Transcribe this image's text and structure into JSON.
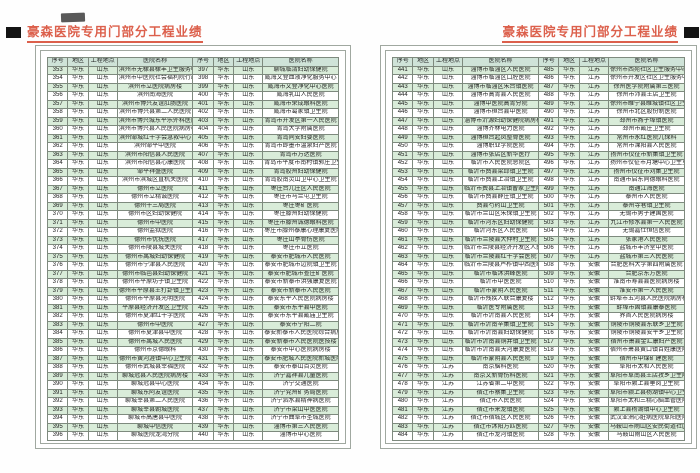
{
  "title": "豪森医院专用门部分工程业绩",
  "colors": {
    "accent": "#dc604c",
    "header_bg": "#cfe3d8",
    "stripe": "#d9ecd9"
  },
  "table": {
    "headers": [
      "序号",
      "地区",
      "工程地点",
      "医院名称"
    ]
  },
  "pages": [
    {
      "name": "page-1",
      "left_rows": [
        [
          "353",
          "华东",
          "山东",
          "滨州市无棣县棣丰卫生服务中心"
        ],
        [
          "354",
          "华东",
          "山东",
          "滨州市中医院社会福利院行政楼"
        ],
        [
          "355",
          "华东",
          "山东",
          "滨州市立医院病房楼"
        ],
        [
          "356",
          "华东",
          "山东",
          "滨州南海医院"
        ],
        [
          "357",
          "华东",
          "山东",
          "滨州市博兴友谊肛肠医院"
        ],
        [
          "358",
          "华东",
          "山东",
          "滨州市博兴县第二人民医院"
        ],
        [
          "359",
          "华东",
          "山东",
          "滨州市博兴城东平乐外科医院"
        ],
        [
          "360",
          "华东",
          "山东",
          "滨州市博兴县人民医院病房楼"
        ],
        [
          "361",
          "华东",
          "山东",
          "滨州邹城红十字会急救中心"
        ],
        [
          "362",
          "华东",
          "山东",
          "滨州邹平中医院"
        ],
        [
          "363",
          "华东",
          "山东",
          "滨州市阳信县人民医院"
        ],
        [
          "364",
          "华东",
          "山东",
          "滨州市阳信县心康医院"
        ],
        [
          "365",
          "华东",
          "山东",
          "邹平祥盛医院"
        ],
        [
          "366",
          "华东",
          "山东",
          "滨州市滨城区直机关医院"
        ],
        [
          "367",
          "华东",
          "山东",
          "德州市立医院"
        ],
        [
          "368",
          "华东",
          "山东",
          "德州市立精诚医院"
        ],
        [
          "369",
          "华东",
          "山东",
          "德州十三局医院"
        ],
        [
          "370",
          "华东",
          "山东",
          "德州市区妇幼保健院"
        ],
        [
          "371",
          "华东",
          "山东",
          "德州市中医院"
        ],
        [
          "372",
          "华东",
          "山东",
          "德州监狱医院"
        ],
        [
          "373",
          "华东",
          "山东",
          "德州市优抚医院"
        ],
        [
          "374",
          "华东",
          "山东",
          "德州市陵县城关医院"
        ],
        [
          "375",
          "华东",
          "山东",
          "德州市禹城妇幼保健院"
        ],
        [
          "376",
          "华东",
          "山东",
          "德州市宁津县人民医院"
        ],
        [
          "377",
          "华东",
          "山东",
          "德州市临邑县妇幼保健院"
        ],
        [
          "378",
          "华东",
          "山东",
          "德州市平原坊子镇卫生院"
        ],
        [
          "379",
          "华东",
          "山东",
          "德州市平原县王打卦镇卫生院"
        ],
        [
          "380",
          "华东",
          "山东",
          "德州市平原县光明医院"
        ],
        [
          "381",
          "华东",
          "山东",
          "平原县经济开发区卫生院"
        ],
        [
          "382",
          "华东",
          "山东",
          "德州市夏津红十字医院"
        ],
        [
          "383",
          "华东",
          "山东",
          "德州市中医院"
        ],
        [
          "384",
          "华东",
          "山东",
          "德州市夏津县中医院"
        ],
        [
          "385",
          "华东",
          "山东",
          "德州市禹城人民医院"
        ],
        [
          "386",
          "华东",
          "山东",
          "德州市京德眼科"
        ],
        [
          "387",
          "华东",
          "山东",
          "德州市黄河涯镇中心卫生院"
        ],
        [
          "388",
          "华东",
          "山东",
          "德州市武城县幸福医院"
        ],
        [
          "389",
          "华东",
          "山东",
          "聊城冠县人民医院病房楼"
        ],
        [
          "390",
          "华东",
          "山东",
          "聊城冠县中心医院"
        ],
        [
          "391",
          "华东",
          "山东",
          "聊城东阿友谊医院"
        ],
        [
          "392",
          "华东",
          "山东",
          "聊城莘县第二人民医院"
        ],
        [
          "393",
          "华东",
          "山东",
          "聊城莘县朝城医院"
        ],
        [
          "394",
          "华东",
          "山东",
          "聊城市高唐县中医院"
        ],
        [
          "395",
          "华东",
          "山东",
          "聊城中信医院"
        ],
        [
          "396",
          "华东",
          "山东",
          "聊城医院龙湾分院"
        ]
      ],
      "right_rows": [
        [
          "397",
          "华东",
          "山东",
          "聊城临清妇幼保健院"
        ],
        [
          "398",
          "华东",
          "山东",
          "威海文登血液净化服务中心"
        ],
        [
          "399",
          "华东",
          "山东",
          "威海市文登净化中心医院"
        ],
        [
          "400",
          "华东",
          "山东",
          "威海乳山人民医院"
        ],
        [
          "401",
          "华东",
          "山东",
          "威海市荣成眼科医院"
        ],
        [
          "402",
          "华东",
          "山东",
          "威海市葛家镇卫生院"
        ],
        [
          "403",
          "华东",
          "山东",
          "青岛市开发区第一人民医院"
        ],
        [
          "404",
          "华东",
          "山东",
          "青岛大学附属医院"
        ],
        [
          "405",
          "华东",
          "山东",
          "青岛同安妇婴医院"
        ],
        [
          "406",
          "华东",
          "山东",
          "青岛市即墨市温泉妇产医院"
        ],
        [
          "407",
          "华东",
          "山东",
          "青岛市万达医院"
        ],
        [
          "408",
          "华东",
          "山东",
          "青岛市平度市南村镇郭庄卫生院"
        ],
        [
          "409",
          "华东",
          "山东",
          "青岛胶州妇幼保健院"
        ],
        [
          "410",
          "华东",
          "山东",
          "青岛胶南灵山卫中心卫生院"
        ],
        [
          "411",
          "华东",
          "山东",
          "枣庄台儿庄区人民医院"
        ],
        [
          "412",
          "华东",
          "山东",
          "枣庄市马兰屯卫生院"
        ],
        [
          "413",
          "华东",
          "山东",
          "枣庄枣矿医院"
        ],
        [
          "414",
          "华东",
          "山东",
          "枣庄滕州妇幼保健院"
        ],
        [
          "415",
          "华东",
          "山东",
          "枣庄市滕州诚德眼科医院"
        ],
        [
          "416",
          "华东",
          "山东",
          "枣庄市滕州泰康心理康复医院"
        ],
        [
          "417",
          "华东",
          "山东",
          "枣庄山亭骨伤医院"
        ],
        [
          "418",
          "华东",
          "山东",
          "枣庄市立医院"
        ],
        [
          "419",
          "华东",
          "山东",
          "泰安市肥城市人民医院"
        ],
        [
          "420",
          "华东",
          "山东",
          "泰安市肥城市边院镇卫生院"
        ],
        [
          "421",
          "华东",
          "山东",
          "泰安市肥城市查庄矿医院"
        ],
        [
          "422",
          "华东",
          "山东",
          "泰安市新泰市洪强康复医院"
        ],
        [
          "423",
          "华东",
          "山东",
          "泰安市新泰市人民医院"
        ],
        [
          "424",
          "华东",
          "山东",
          "泰安东平人民医院病房楼"
        ],
        [
          "425",
          "华东",
          "山东",
          "泰安市东平县中医院"
        ],
        [
          "426",
          "华东",
          "山东",
          "泰安市东平县戴庙卫生院"
        ],
        [
          "427",
          "华东",
          "山东",
          "泰安市宁阳二院"
        ],
        [
          "428",
          "华东",
          "山东",
          "泰安新泰市人民医院综合病房楼"
        ],
        [
          "429",
          "华东",
          "山东",
          "泰安新泰市人民医院医技楼"
        ],
        [
          "430",
          "华东",
          "山东",
          "泰安市中心医院病房楼"
        ],
        [
          "431",
          "华东",
          "山东",
          "泰安市肥城人民医院新城医院"
        ],
        [
          "432",
          "华东",
          "山东",
          "泰安市泰山百灵医院"
        ],
        [
          "433",
          "华东",
          "山东",
          "济宁嘉祥县儿童医院"
        ],
        [
          "434",
          "华东",
          "山东",
          "济宁交通医院"
        ],
        [
          "435",
          "华东",
          "山东",
          "济宁兖州矿务局医院"
        ],
        [
          "436",
          "华东",
          "山东",
          "济宁泗水县精神病医院"
        ],
        [
          "437",
          "华东",
          "山东",
          "济宁市梁山中医医院"
        ],
        [
          "438",
          "华东",
          "山东",
          "济宁市曲阜市圣城医院"
        ],
        [
          "439",
          "华东",
          "山东",
          "淄博市第三人民医院"
        ],
        [
          "440",
          "华东",
          "山东",
          "淄博市中心医院"
        ]
      ]
    },
    {
      "name": "page-2",
      "left_rows": [
        [
          "441",
          "华东",
          "山东",
          "淄博市临淄区人民医院"
        ],
        [
          "442",
          "华东",
          "山东",
          "淄博市临淄区口腔医院"
        ],
        [
          "443",
          "华东",
          "山东",
          "淄博市临淄区朱台镇医院"
        ],
        [
          "444",
          "华东",
          "山东",
          "淄博市高青县人民医院"
        ],
        [
          "445",
          "华东",
          "山东",
          "淄博中医院高青分院"
        ],
        [
          "446",
          "华东",
          "山东",
          "淄博市桓台县中医院"
        ],
        [
          "447",
          "华东",
          "山东",
          "淄博市沂源妇幼保健院病房楼"
        ],
        [
          "448",
          "华东",
          "山东",
          "淄博齐林电力医院"
        ],
        [
          "449",
          "华东",
          "山东",
          "淄博桓台起凤整骨医院"
        ],
        [
          "450",
          "华东",
          "山东",
          "淄博职业学院医院"
        ],
        [
          "451",
          "华东",
          "山东",
          "淄博市张店区新华医疗"
        ],
        [
          "452",
          "华东",
          "山东",
          "临沂市人民医院总院区"
        ],
        [
          "453",
          "华东",
          "山东",
          "临沂市费县梁邱镇卫生院"
        ],
        [
          "454",
          "华东",
          "山东",
          "临沂市费县上冶镇卫生院"
        ],
        [
          "455",
          "华东",
          "山东",
          "临沂市费县上冶镇曹家卫生院"
        ],
        [
          "456",
          "华东",
          "山东",
          "临沂市费县薛庄镇卫生院"
        ],
        [
          "457",
          "华东",
          "山东",
          "费县芍药山卫生院"
        ],
        [
          "458",
          "华东",
          "山东",
          "临沂市兰山区朱保镇卫生院"
        ],
        [
          "459",
          "华东",
          "山东",
          "临沂市河东区妇幼保健院"
        ],
        [
          "460",
          "华东",
          "山东",
          "临沂河东区人民医院"
        ],
        [
          "461",
          "华东",
          "山东",
          "临沂市兰陵县大仲村卫生院"
        ],
        [
          "462",
          "华东",
          "山东",
          "临沂市兰陵县经济开发区人民医院"
        ],
        [
          "463",
          "华东",
          "山东",
          "临沂市兰陵县红十字会医院"
        ],
        [
          "464",
          "华东",
          "山东",
          "临沂市兰陵县芦柞镇中西医结合医院"
        ],
        [
          "465",
          "华东",
          "山东",
          "临沂市临沭洪峰医院"
        ],
        [
          "466",
          "华东",
          "山东",
          "临沂市中医医院"
        ],
        [
          "467",
          "华东",
          "山东",
          "临沂市蒙阴人民医院"
        ],
        [
          "468",
          "华东",
          "山东",
          "临沂市残疾人联合康复楼"
        ],
        [
          "469",
          "华东",
          "山东",
          "临沂医专附属医院"
        ],
        [
          "470",
          "华东",
          "山东",
          "临沂市沂南县人民医院"
        ],
        [
          "471",
          "华东",
          "山东",
          "临沂市沂南辛集镇卫生院"
        ],
        [
          "472",
          "华东",
          "山东",
          "临沂市沂南县妇幼保健院"
        ],
        [
          "473",
          "华东",
          "山东",
          "临沂市沂南县铜井镇卫生院"
        ],
        [
          "474",
          "华东",
          "山东",
          "临沂市沂南县天河康复医院"
        ],
        [
          "475",
          "华东",
          "山东",
          "临沂市蒙阴县人民医院"
        ],
        [
          "476",
          "华东",
          "江苏",
          "南京脑科医院"
        ],
        [
          "477",
          "华东",
          "江苏",
          "南京文新骨伤科医院"
        ],
        [
          "478",
          "华东",
          "江苏",
          "江苏省第二中医院"
        ],
        [
          "479",
          "华东",
          "江苏",
          "宿迁市蔡集卫生院"
        ],
        [
          "480",
          "华东",
          "江苏",
          "宿迁市人民医院"
        ],
        [
          "481",
          "华东",
          "江苏",
          "宿迁市来龙镇医院"
        ],
        [
          "482",
          "华东",
          "江苏",
          "宿迁市宿城区人民医院"
        ],
        [
          "483",
          "华东",
          "江苏",
          "宿迁市沭阳万匹医院"
        ],
        [
          "484",
          "华东",
          "江苏",
          "宿迁市龙河镇医院"
        ]
      ],
      "right_rows": [
        [
          "485",
          "华东",
          "江苏",
          "徐州市西苑社区卫生服务中心"
        ],
        [
          "486",
          "华东",
          "江苏",
          "徐州市开发区社区卫生服务中心"
        ],
        [
          "487",
          "华东",
          "江苏",
          "徐州医学院附属第三医院"
        ],
        [
          "488",
          "华东",
          "江苏",
          "徐州市沛县王店卫生院"
        ],
        [
          "489",
          "华东",
          "江苏",
          "徐州市睢宁县睢城镇社区卫生服务中心"
        ],
        [
          "490",
          "华东",
          "江苏",
          "徐州市北区股份制医院"
        ],
        [
          "491",
          "华东",
          "江苏",
          "邳州市燕子埠镇医院"
        ],
        [
          "492",
          "华东",
          "江苏",
          "邳州市戴庄卫生院"
        ],
        [
          "493",
          "华东",
          "江苏",
          "常州市永红医院儿保科"
        ],
        [
          "494",
          "华东",
          "江苏",
          "常州市溧阳县人民医院"
        ],
        [
          "495",
          "华东",
          "江苏",
          "扬州市仪征市新集镇卫生院"
        ],
        [
          "496",
          "华东",
          "江苏",
          "扬州市仪征市月塘中心卫生室"
        ],
        [
          "497",
          "华东",
          "江苏",
          "扬州市仪征市刘集卫生院"
        ],
        [
          "498",
          "华东",
          "江苏",
          "南通市启东同德眼科医院"
        ],
        [
          "499",
          "华东",
          "江苏",
          "南通江海医院"
        ],
        [
          "500",
          "华东",
          "江苏",
          "泰州市人民医院"
        ],
        [
          "501",
          "华东",
          "江苏",
          "泰州寺巷镇卫生院"
        ],
        [
          "502",
          "华东",
          "江苏",
          "无锡市男子建国医院"
        ],
        [
          "503",
          "华东",
          "江苏",
          "九江市修水县第一人民医院"
        ],
        [
          "504",
          "华东",
          "江苏",
          "无锡嘉仕恒信医院"
        ],
        [
          "505",
          "华东",
          "江苏",
          "张家港人民医院"
        ],
        [
          "506",
          "华东",
          "江苏",
          "盐城市丰济堂中医院"
        ],
        [
          "507",
          "华东",
          "江苏",
          "盐城市第三人民医院"
        ],
        [
          "508",
          "华东",
          "安徽",
          "合肥医科大学第四附属医院"
        ],
        [
          "509",
          "华东",
          "安徽",
          "合肥京东方医院"
        ],
        [
          "510",
          "华东",
          "安徽",
          "淮南市寿县县医院病房楼"
        ],
        [
          "511",
          "华东",
          "安徽",
          "淮安市第一人民医院"
        ],
        [
          "512",
          "华东",
          "安徽",
          "蚌埠市五河县人民医院病房楼"
        ],
        [
          "513",
          "华东",
          "安徽",
          "蚌埠市固镇县康泰医院"
        ],
        [
          "514",
          "华东",
          "安徽",
          "界首人民医院病房楼"
        ],
        [
          "515",
          "华东",
          "安徽",
          "铜陵市铜陵县东联乡卫生院"
        ],
        [
          "516",
          "华东",
          "安徽",
          "铜陵市铜陵县安平乡卫生院"
        ],
        [
          "517",
          "华东",
          "安徽",
          "宿州市萧县金汇康妇产医院"
        ],
        [
          "518",
          "华东",
          "安徽",
          "宿州市萧县黄口镇百姓康医院"
        ],
        [
          "519",
          "华东",
          "安徽",
          "宿州市中煤矿建医院"
        ],
        [
          "520",
          "华东",
          "安徽",
          "阜阳市太和人民医院"
        ],
        [
          "521",
          "华东",
          "安徽",
          "阜阳市阜南县王店孜乡卫生院"
        ],
        [
          "522",
          "华东",
          "安徽",
          "阜阳市颍上县垂岗卫生院"
        ],
        [
          "523",
          "华东",
          "安徽",
          "阜阳市颍上县杨湖镇中心卫生院"
        ],
        [
          "524",
          "华东",
          "安徽",
          "阜阳市太和三精心脑血管医院"
        ],
        [
          "525",
          "华东",
          "安徽",
          "颍上县杨湖镇中心卫生院"
        ],
        [
          "526",
          "华东",
          "安徽",
          "武汉亚洲心脏病医院阜阳医院(阜阳和谐医院)"
        ],
        [
          "527",
          "华东",
          "安徽",
          "马鞍山市雨山区安民街道社区卫生中心"
        ],
        [
          "528",
          "华东",
          "安徽",
          "马鞍山雨山区人民医院"
        ]
      ]
    }
  ]
}
